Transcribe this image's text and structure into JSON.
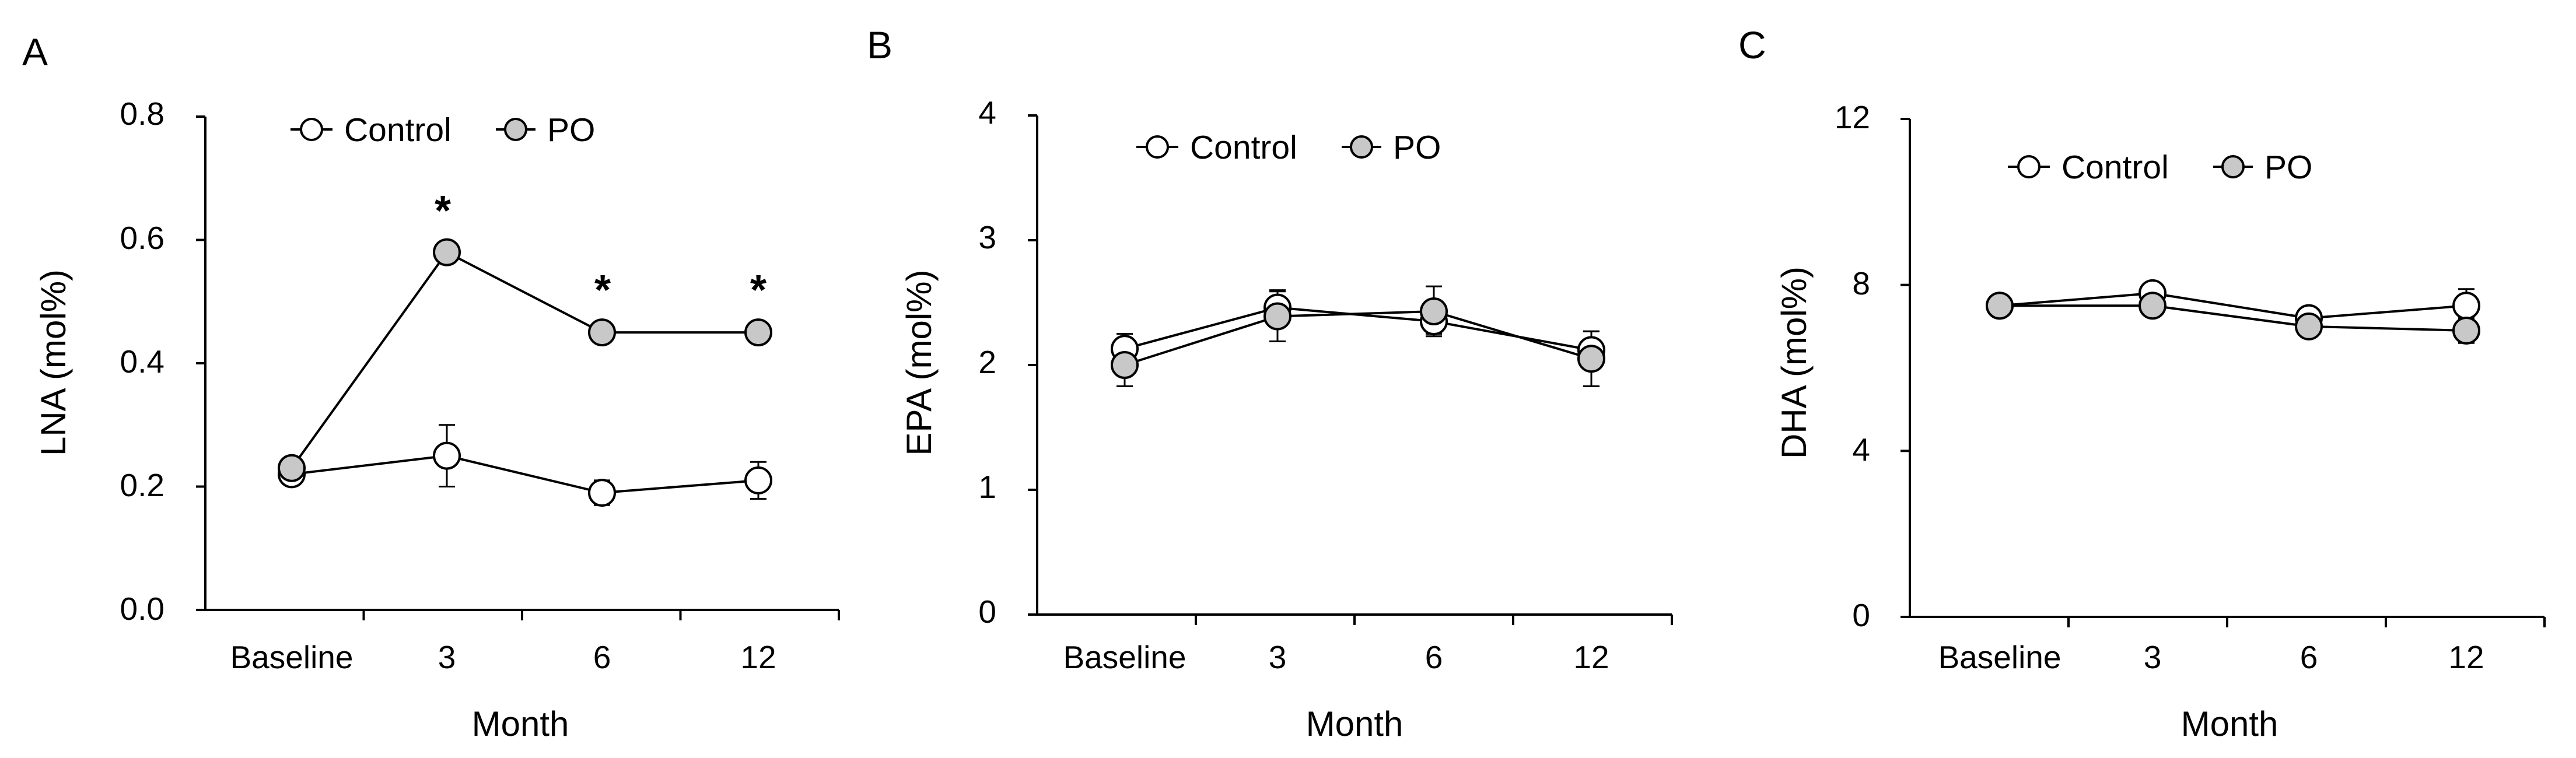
{
  "colors": {
    "axis": "#000000",
    "line": "#000000",
    "control_fill": "#ffffff",
    "po_fill": "#c8c8c8"
  },
  "chart_data": [
    {
      "panel_label": "A",
      "type": "line",
      "title": "",
      "xlabel": "Month",
      "ylabel": "LNA (mol%)",
      "categories": [
        "Baseline",
        "3",
        "6",
        "12"
      ],
      "ylim": [
        0,
        0.8
      ],
      "yticks": [
        "0.0",
        "0.2",
        "0.4",
        "0.6",
        "0.8"
      ],
      "legend": [
        "Control",
        "PO"
      ],
      "legend_position": "top-center",
      "series": [
        {
          "name": "Control",
          "marker_fill": "#ffffff",
          "values": [
            0.22,
            0.25,
            0.19,
            0.21
          ],
          "errors": [
            0.01,
            0.05,
            0.02,
            0.03
          ]
        },
        {
          "name": "PO",
          "marker_fill": "#c8c8c8",
          "values": [
            0.23,
            0.58,
            0.45,
            0.45
          ],
          "errors": [
            0.01,
            0.01,
            0.01,
            0.01
          ]
        }
      ],
      "significance": [
        "",
        "*",
        "*",
        "*"
      ]
    },
    {
      "panel_label": "B",
      "type": "line",
      "title": "",
      "xlabel": "Month",
      "ylabel": "EPA (mol%)",
      "categories": [
        "Baseline",
        "3",
        "6",
        "12"
      ],
      "ylim": [
        0,
        4
      ],
      "yticks": [
        "0",
        "1",
        "2",
        "3",
        "4"
      ],
      "legend": [
        "Control",
        "PO"
      ],
      "legend_position": "top-center",
      "series": [
        {
          "name": "Control",
          "marker_fill": "#ffffff",
          "values": [
            2.13,
            2.46,
            2.35,
            2.12
          ],
          "errors": [
            0.12,
            0.14,
            0.1,
            0.15
          ]
        },
        {
          "name": "PO",
          "marker_fill": "#c8c8c8",
          "values": [
            2.0,
            2.39,
            2.43,
            2.05
          ],
          "errors": [
            0.17,
            0.2,
            0.2,
            0.22
          ]
        }
      ],
      "significance": [
        "",
        "",
        "",
        ""
      ]
    },
    {
      "panel_label": "C",
      "type": "line",
      "title": "",
      "xlabel": "Month",
      "ylabel": "DHA (mol%)",
      "categories": [
        "Baseline",
        "3",
        "6",
        "12"
      ],
      "ylim": [
        0,
        12
      ],
      "yticks": [
        "0",
        "4",
        "8",
        "12"
      ],
      "legend": [
        "Control",
        "PO"
      ],
      "legend_position": "top-center",
      "series": [
        {
          "name": "Control",
          "marker_fill": "#ffffff",
          "values": [
            7.5,
            7.8,
            7.2,
            7.5
          ],
          "errors": [
            0.2,
            0.2,
            0.2,
            0.4
          ]
        },
        {
          "name": "PO",
          "marker_fill": "#c8c8c8",
          "values": [
            7.5,
            7.5,
            7.0,
            6.9
          ],
          "errors": [
            0.2,
            0.2,
            0.2,
            0.3
          ]
        }
      ],
      "significance": [
        "",
        "",
        "",
        ""
      ]
    }
  ]
}
